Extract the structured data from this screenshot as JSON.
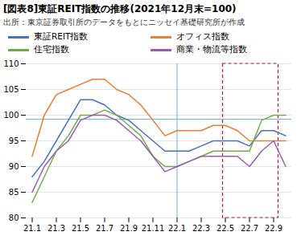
{
  "chart_data": {
    "type": "line",
    "title": "[図表8]東証REIT指数の推移(2021年12月末=100)",
    "subtitle": "出所：東京証券取引所のデータをもとにニッセイ基礎研究所が作成",
    "categories": [
      "21.1",
      null,
      "21.3",
      null,
      "21.5",
      null,
      "21.7",
      null,
      "21.9",
      null,
      "21.11",
      null,
      "22.1",
      null,
      "22.3",
      null,
      "22.5",
      null,
      "22.7",
      null,
      "22.9",
      null
    ],
    "series": [
      {
        "name": "東証REIT指数",
        "color": "#4472c4",
        "values": [
          88,
          91,
          95,
          99,
          103,
          103,
          102,
          100,
          99,
          97,
          95,
          93,
          93,
          93,
          94,
          95,
          95,
          95,
          94,
          97,
          97,
          96
        ]
      },
      {
        "name": "オフィス指数",
        "color": "#ed7d31",
        "values": [
          92,
          100,
          104,
          105,
          106,
          107,
          107,
          105,
          104,
          102,
          99,
          96,
          97,
          97,
          97,
          98,
          98,
          97,
          95,
          95,
          95,
          95
        ]
      },
      {
        "name": "住宅指数",
        "color": "#70ad47",
        "values": [
          83,
          88,
          93,
          96,
          100,
          100,
          101,
          100,
          98,
          96,
          92,
          90,
          90,
          91,
          92,
          93,
          93,
          93,
          93,
          99,
          100,
          100
        ]
      },
      {
        "name": "商業・物流等指数",
        "color": "#9b59b6",
        "values": [
          85,
          90,
          93,
          95,
          99,
          100,
          100,
          99,
          97,
          95,
          92,
          89,
          90,
          91,
          92,
          92,
          92,
          92,
          90,
          93,
          95,
          90
        ]
      }
    ],
    "ylim": [
      80,
      110
    ],
    "yticks": [
      80,
      85,
      90,
      95,
      100,
      105,
      110
    ],
    "grid": true,
    "hline": {
      "y": 99.2,
      "color": "#6baed6"
    },
    "vline": {
      "x": "22.1",
      "color": "#6baed6"
    },
    "highlight": {
      "from": "22.5",
      "to": "22.9",
      "color": "#aa2233",
      "line_style": "dashed"
    }
  }
}
